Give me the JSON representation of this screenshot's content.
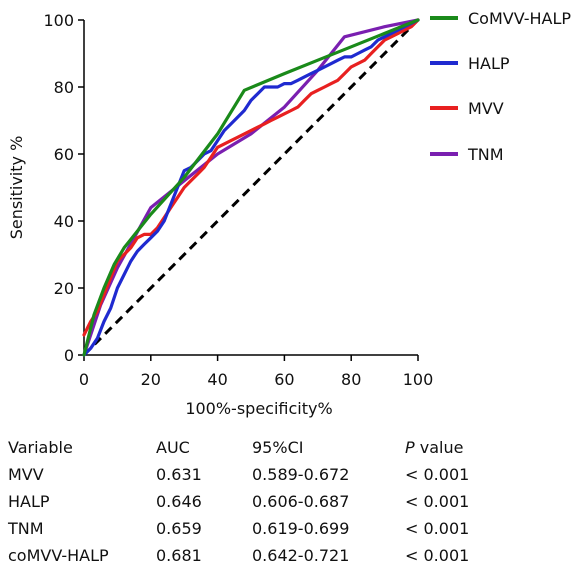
{
  "chart_data": {
    "type": "line",
    "title": "",
    "xlabel": "100%-specificity%",
    "ylabel": "Sensitivity %",
    "xlim": [
      0,
      100
    ],
    "ylim": [
      0,
      100
    ],
    "xticks": [
      0,
      20,
      40,
      60,
      80,
      100
    ],
    "yticks": [
      0,
      20,
      40,
      60,
      80,
      100
    ],
    "grid": false,
    "legend_position": "right",
    "reference_line": {
      "x": [
        0,
        100
      ],
      "y": [
        0,
        100
      ],
      "style": "dashed",
      "color": "#000000"
    },
    "series": [
      {
        "name": "CoMVV-HALP",
        "color": "#1a8a1a",
        "x": [
          0,
          3,
          6,
          9,
          12,
          20,
          30,
          40,
          48,
          60,
          70,
          80,
          90,
          100
        ],
        "y": [
          0,
          12,
          20,
          27,
          32,
          42,
          53,
          66,
          79,
          84,
          88,
          92,
          96,
          100
        ]
      },
      {
        "name": "HALP",
        "color": "#1f2ad0",
        "x": [
          0,
          2,
          4,
          6,
          8,
          10,
          12,
          14,
          16,
          18,
          20,
          22,
          24,
          26,
          28,
          30,
          32,
          34,
          36,
          38,
          40,
          42,
          44,
          46,
          48,
          50,
          52,
          54,
          56,
          58,
          60,
          62,
          64,
          66,
          68,
          70,
          72,
          74,
          76,
          78,
          80,
          82,
          84,
          86,
          88,
          90,
          92,
          94,
          96,
          98,
          100
        ],
        "y": [
          0,
          2,
          5,
          10,
          14,
          20,
          24,
          28,
          31,
          33,
          35,
          37,
          40,
          45,
          50,
          55,
          56,
          58,
          60,
          61,
          64,
          67,
          69,
          71,
          73,
          76,
          78,
          80,
          80,
          80,
          81,
          81,
          82,
          83,
          84,
          85,
          86,
          87,
          88,
          89,
          89,
          90,
          91,
          92,
          94,
          95,
          96,
          97,
          98,
          99,
          100
        ]
      },
      {
        "name": "MVV",
        "color": "#e82020",
        "x": [
          0,
          2,
          4,
          6,
          8,
          10,
          12,
          14,
          16,
          18,
          20,
          22,
          24,
          26,
          28,
          30,
          32,
          34,
          36,
          38,
          40,
          42,
          44,
          46,
          48,
          50,
          52,
          54,
          56,
          58,
          60,
          62,
          64,
          66,
          68,
          70,
          72,
          74,
          76,
          78,
          80,
          82,
          84,
          86,
          88,
          90,
          92,
          94,
          96,
          98,
          100
        ],
        "y": [
          6,
          10,
          13,
          18,
          23,
          28,
          30,
          32,
          35,
          36,
          36,
          38,
          41,
          44,
          47,
          50,
          52,
          54,
          56,
          59,
          62,
          63,
          64,
          65,
          66,
          67,
          68,
          69,
          70,
          71,
          72,
          73,
          74,
          76,
          78,
          79,
          80,
          81,
          82,
          84,
          86,
          87,
          88,
          90,
          92,
          94,
          95,
          96,
          97,
          98,
          100
        ]
      },
      {
        "name": "TNM",
        "color": "#7a1fb0",
        "x": [
          0,
          5,
          10,
          15,
          20,
          30,
          40,
          50,
          60,
          70,
          78,
          90,
          100
        ],
        "y": [
          0,
          15,
          26,
          35,
          44,
          52,
          60,
          66,
          74,
          85,
          95,
          98,
          100
        ]
      }
    ]
  },
  "table": {
    "headers": {
      "variable": "Variable",
      "auc": "AUC",
      "ci": "95%CI",
      "p_letter": "P",
      "p_rest": " value"
    },
    "rows": [
      {
        "variable": "MVV",
        "auc": "0.631",
        "ci": "0.589-0.672",
        "p": "< 0.001"
      },
      {
        "variable": "HALP",
        "auc": "0.646",
        "ci": "0.606-0.687",
        "p": "< 0.001"
      },
      {
        "variable": "TNM",
        "auc": "0.659",
        "ci": "0.619-0.699",
        "p": "< 0.001"
      },
      {
        "variable": "coMVV-HALP",
        "auc": "0.681",
        "ci": "0.642-0.721",
        "p": "< 0.001"
      }
    ]
  }
}
